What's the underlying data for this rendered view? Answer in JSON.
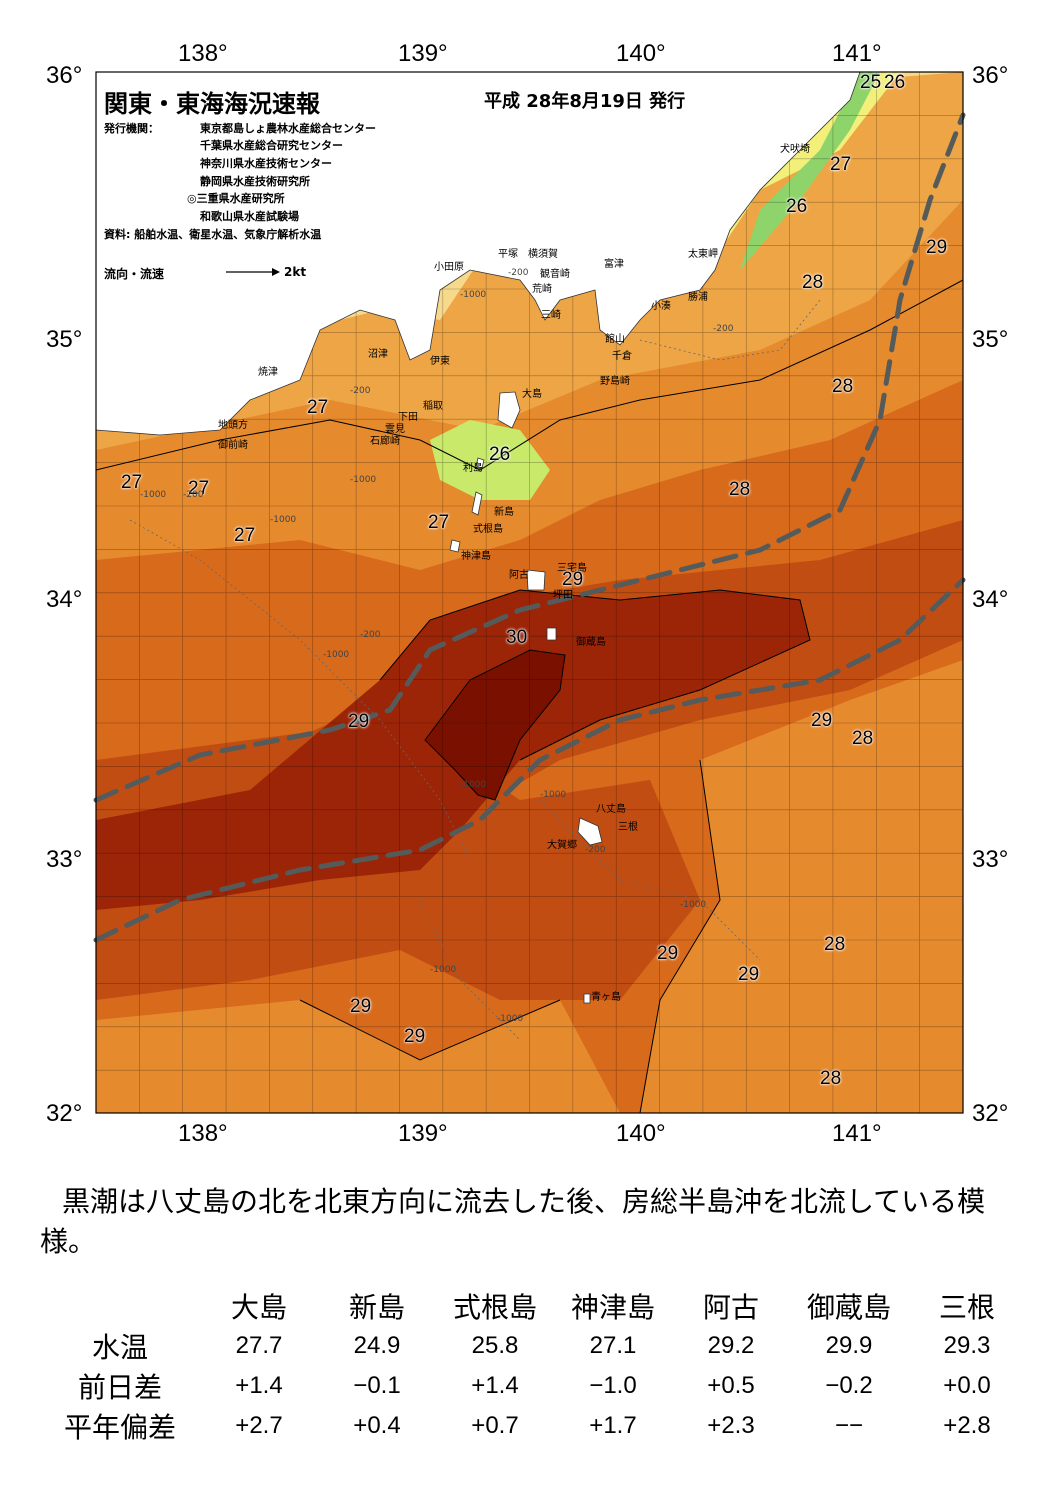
{
  "title": "関東・東海海況速報",
  "issue_date": "平成 28年8月19日 発行",
  "publishers_label": "発行機関：",
  "publishers": [
    "東京都島しょ農林水産総合センター",
    "千葉県水産総合研究センター",
    "神奈川県水産技術センター",
    "静岡県水産技術研究所",
    "◎三重県水産研究所",
    "和歌山県水産試験場"
  ],
  "sources": "資料: 船舶水温、衛星水温、気象庁解析水温",
  "legend": {
    "label": "流向・流速",
    "scale": "2kt"
  },
  "axes": {
    "lon_top": [
      "138°",
      "139°",
      "140°",
      "141°"
    ],
    "lon_bottom": [
      "138°",
      "139°",
      "140°",
      "141°"
    ],
    "lat_left": [
      "36°",
      "35°",
      "34°",
      "33°",
      "32°"
    ],
    "lat_right": [
      "36°",
      "35°",
      "34°",
      "33°",
      "32°"
    ]
  },
  "colors": {
    "t25": "#8fd46a",
    "t26": "#c8e96a",
    "t26b": "#f2ef7a",
    "t27": "#f7d98c",
    "t27b": "#f2c26a",
    "t28": "#eea545",
    "t28b": "#e68a2e",
    "t29": "#d86a1c",
    "t29b": "#c24d12",
    "t30": "#9c2508",
    "t30b": "#7a1100",
    "land": "#ffffff",
    "kuroshio": "#555a5a"
  },
  "places": [
    "小田原",
    "平塚",
    "横須賀",
    "観音崎",
    "富津",
    "荒崎",
    "三崎",
    "太東岬",
    "小湊",
    "勝浦",
    "犬吠埼",
    "沼津",
    "伊東",
    "稲取",
    "下田",
    "雲見",
    "石廊崎",
    "焼津",
    "地頭方",
    "御前崎",
    "館山",
    "千倉",
    "野島崎",
    "大島",
    "利島",
    "新島",
    "式根島",
    "神津島",
    "三宅島",
    "阿古",
    "坪田",
    "御蔵島",
    "八丈島",
    "三根",
    "大賀郷",
    "青ヶ島"
  ],
  "temperature_labels": [
    "25",
    "26",
    "27",
    "26",
    "29",
    "28",
    "28",
    "27",
    "27",
    "27",
    "26",
    "27",
    "28",
    "27",
    "29",
    "30",
    "29",
    "29",
    "28",
    "29",
    "29",
    "28",
    "29",
    "29",
    "28"
  ],
  "depth_labels": [
    "-200",
    "-1000",
    "-200",
    "-1000",
    "-200",
    "-1000",
    "-1000",
    "-200",
    "-1000",
    "-1000",
    "-1000",
    "-1000",
    "-1000",
    "-1000",
    "-200",
    "-200"
  ],
  "summary": "黒潮は八丈島の北を北東方向に流去した後、房総半島沖を北流している模様。",
  "table": {
    "stations": [
      "大島",
      "新島",
      "式根島",
      "神津島",
      "阿古",
      "御蔵島",
      "三根"
    ],
    "rows": [
      {
        "label": "水温",
        "values": [
          "27.7",
          "24.9",
          "25.8",
          "27.1",
          "29.2",
          "29.9",
          "29.3"
        ]
      },
      {
        "label": "前日差",
        "values": [
          "+1.4",
          "−0.1",
          "+1.4",
          "−1.0",
          "+0.5",
          "−0.2",
          "+0.0"
        ]
      },
      {
        "label": "平年偏差",
        "values": [
          "+2.7",
          "+0.4",
          "+0.7",
          "+1.7",
          "+2.3",
          "−−",
          "+2.8"
        ]
      }
    ]
  }
}
